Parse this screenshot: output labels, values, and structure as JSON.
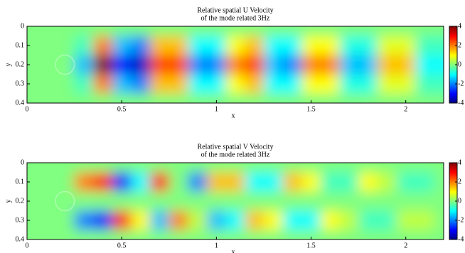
{
  "chart_data": [
    {
      "type": "heatmap",
      "title": [
        "Relative spatial U Velocity",
        "of the mode related 3Hz"
      ],
      "x_label": "x",
      "y_label": "y",
      "xlim": [
        0,
        2.2
      ],
      "ylim": [
        0,
        0.4
      ],
      "y_inverted": true,
      "xticks": [
        0,
        0.5,
        1,
        1.5,
        2
      ],
      "yticks": [
        0,
        0.1,
        0.2,
        0.3,
        0.4
      ],
      "clim": [
        -4,
        4
      ],
      "cticks": [
        4,
        2,
        0,
        -2,
        -4
      ],
      "colormap": "jet",
      "x": [
        0,
        0.1,
        0.2,
        0.3,
        0.4,
        0.5,
        0.6,
        0.7,
        0.8,
        0.9,
        1,
        1.1,
        1.2,
        1.3,
        1.4,
        1.5,
        1.6,
        1.7,
        1.8,
        1.9,
        2,
        2.1,
        2.2
      ],
      "y": [
        0.1,
        0.2,
        0.3
      ],
      "z": [
        [
          0,
          0,
          0,
          -0.5,
          2,
          -1.5,
          -2,
          1.5,
          1.5,
          -1,
          -1,
          1,
          1.5,
          -1,
          -1,
          1,
          1,
          -0.8,
          -0.8,
          0.8,
          0.8,
          -0.5,
          -0.5
        ],
        [
          0,
          0,
          0,
          -1.5,
          4,
          -3,
          -3.5,
          2.5,
          2.5,
          -2,
          -2,
          2,
          2.5,
          -1.5,
          -2,
          2,
          2,
          -1.5,
          -1.5,
          1.5,
          1.5,
          -1,
          -1
        ],
        [
          0,
          0,
          0,
          -0.5,
          2,
          -1.5,
          -2,
          1.5,
          1.5,
          -1,
          -1,
          1,
          1.5,
          -1,
          -1,
          1,
          1,
          -0.8,
          -0.8,
          0.8,
          0.8,
          -0.5,
          -0.5
        ]
      ]
    },
    {
      "type": "heatmap",
      "title": [
        "Relative spatial V Velocity",
        "of the mode related 3Hz"
      ],
      "x_label": "x",
      "y_label": "y",
      "xlim": [
        0,
        2.2
      ],
      "ylim": [
        0,
        0.4
      ],
      "y_inverted": true,
      "xticks": [
        0,
        0.5,
        1,
        1.5,
        2
      ],
      "yticks": [
        0,
        0.1,
        0.2,
        0.3,
        0.4
      ],
      "clim": [
        -4,
        4
      ],
      "cticks": [
        4,
        2,
        0,
        -2,
        -4
      ],
      "colormap": "jet",
      "x": [
        0,
        0.1,
        0.2,
        0.3,
        0.4,
        0.5,
        0.6,
        0.7,
        0.8,
        0.9,
        1,
        1.1,
        1.2,
        1.3,
        1.4,
        1.5,
        1.6,
        1.7,
        1.8,
        1.9,
        2,
        2.1,
        2.2
      ],
      "y": [
        0.1,
        0.2,
        0.3
      ],
      "z": [
        [
          0,
          0,
          0,
          2,
          3,
          -3,
          -1,
          3,
          0,
          -2,
          1.5,
          1.5,
          -1,
          -1,
          1.5,
          1,
          -0.5,
          -0.5,
          1,
          0.5,
          -0.5,
          -0.5,
          0
        ],
        [
          0,
          0,
          0,
          0,
          0,
          0,
          0,
          0,
          0,
          0,
          0,
          0,
          0,
          0,
          0,
          0,
          0,
          0,
          0,
          0,
          0,
          0,
          0
        ],
        [
          0,
          0,
          0,
          -2,
          -3,
          3,
          1,
          -1.5,
          2,
          0.5,
          -1.5,
          -1,
          1.5,
          1,
          -1,
          -1,
          1,
          0.5,
          -0.5,
          -0.5,
          0.5,
          0.5,
          0
        ]
      ]
    }
  ]
}
